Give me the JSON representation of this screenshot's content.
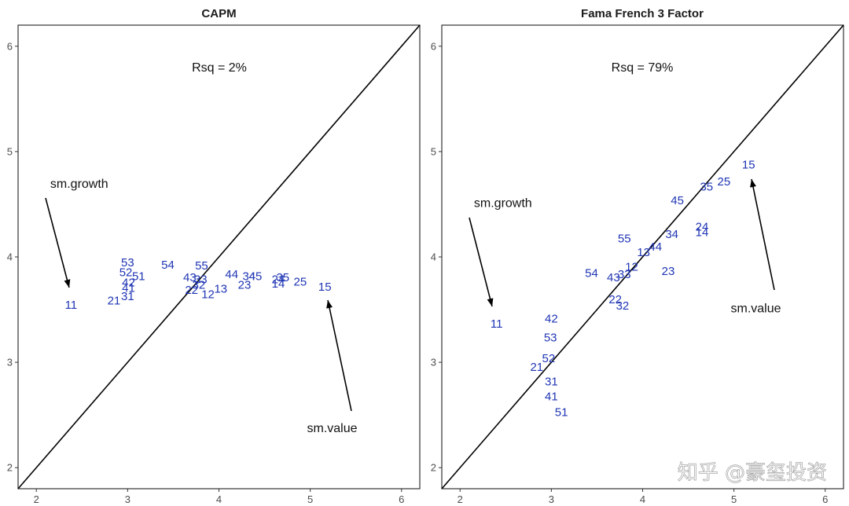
{
  "chart_data": [
    {
      "type": "scatter",
      "title": "CAPM",
      "xlim": [
        1.8,
        6.2
      ],
      "ylim": [
        1.8,
        6.2
      ],
      "xticks": [
        "2",
        "3",
        "4",
        "5",
        "6"
      ],
      "yticks": [
        "2",
        "3",
        "4",
        "5",
        "6"
      ],
      "reference_line": "45-degree",
      "rsq_label": "Rsq = 2%",
      "points": [
        {
          "label": "11",
          "x": 2.38,
          "y": 3.55
        },
        {
          "label": "21",
          "x": 2.85,
          "y": 3.59
        },
        {
          "label": "31",
          "x": 3.0,
          "y": 3.63
        },
        {
          "label": "41",
          "x": 3.01,
          "y": 3.71
        },
        {
          "label": "42",
          "x": 3.01,
          "y": 3.76
        },
        {
          "label": "51",
          "x": 3.12,
          "y": 3.82
        },
        {
          "label": "52",
          "x": 2.98,
          "y": 3.86
        },
        {
          "label": "53",
          "x": 3.0,
          "y": 3.95
        },
        {
          "label": "54",
          "x": 3.44,
          "y": 3.93
        },
        {
          "label": "43",
          "x": 3.68,
          "y": 3.81
        },
        {
          "label": "33",
          "x": 3.8,
          "y": 3.79
        },
        {
          "label": "55",
          "x": 3.81,
          "y": 3.92
        },
        {
          "label": "32",
          "x": 3.78,
          "y": 3.74
        },
        {
          "label": "22",
          "x": 3.7,
          "y": 3.69
        },
        {
          "label": "12",
          "x": 3.88,
          "y": 3.65
        },
        {
          "label": "13",
          "x": 4.02,
          "y": 3.7
        },
        {
          "label": "44",
          "x": 4.14,
          "y": 3.84
        },
        {
          "label": "34",
          "x": 4.33,
          "y": 3.82
        },
        {
          "label": "45",
          "x": 4.4,
          "y": 3.82
        },
        {
          "label": "23",
          "x": 4.28,
          "y": 3.74
        },
        {
          "label": "24",
          "x": 4.65,
          "y": 3.79
        },
        {
          "label": "35",
          "x": 4.7,
          "y": 3.81
        },
        {
          "label": "14",
          "x": 4.65,
          "y": 3.75
        },
        {
          "label": "25",
          "x": 4.89,
          "y": 3.77
        },
        {
          "label": "15",
          "x": 5.16,
          "y": 3.72
        }
      ],
      "annotations": [
        {
          "text": "sm.growth",
          "x": 2.47,
          "y": 4.7
        },
        {
          "text": "sm.value",
          "x": 5.24,
          "y": 2.38
        }
      ]
    },
    {
      "type": "scatter",
      "title": "Fama French 3 Factor",
      "xlim": [
        1.8,
        6.2
      ],
      "ylim": [
        1.8,
        6.2
      ],
      "xticks": [
        "2",
        "3",
        "4",
        "5",
        "6"
      ],
      "yticks": [
        "2",
        "3",
        "4",
        "5",
        "6"
      ],
      "reference_line": "45-degree",
      "rsq_label": "Rsq = 79%",
      "points": [
        {
          "label": "11",
          "x": 2.4,
          "y": 3.37
        },
        {
          "label": "42",
          "x": 3.0,
          "y": 3.42
        },
        {
          "label": "53",
          "x": 2.99,
          "y": 3.24
        },
        {
          "label": "52",
          "x": 2.97,
          "y": 3.04
        },
        {
          "label": "21",
          "x": 2.84,
          "y": 2.96
        },
        {
          "label": "31",
          "x": 3.0,
          "y": 2.82
        },
        {
          "label": "41",
          "x": 3.0,
          "y": 2.68
        },
        {
          "label": "51",
          "x": 3.11,
          "y": 2.53
        },
        {
          "label": "54",
          "x": 3.44,
          "y": 3.85
        },
        {
          "label": "43",
          "x": 3.68,
          "y": 3.81
        },
        {
          "label": "33",
          "x": 3.8,
          "y": 3.84
        },
        {
          "label": "22",
          "x": 3.7,
          "y": 3.6
        },
        {
          "label": "32",
          "x": 3.78,
          "y": 3.54
        },
        {
          "label": "55",
          "x": 3.8,
          "y": 4.18
        },
        {
          "label": "12",
          "x": 3.88,
          "y": 3.91
        },
        {
          "label": "13",
          "x": 4.01,
          "y": 4.05
        },
        {
          "label": "44",
          "x": 4.14,
          "y": 4.1
        },
        {
          "label": "34",
          "x": 4.32,
          "y": 4.22
        },
        {
          "label": "23",
          "x": 4.28,
          "y": 3.87
        },
        {
          "label": "45",
          "x": 4.38,
          "y": 4.54
        },
        {
          "label": "24",
          "x": 4.65,
          "y": 4.29
        },
        {
          "label": "14",
          "x": 4.65,
          "y": 4.24
        },
        {
          "label": "35",
          "x": 4.7,
          "y": 4.67
        },
        {
          "label": "25",
          "x": 4.89,
          "y": 4.72
        },
        {
          "label": "15",
          "x": 5.16,
          "y": 4.88
        }
      ],
      "annotations": [
        {
          "text": "sm.growth",
          "x": 2.47,
          "y": 4.52
        },
        {
          "text": "sm.value",
          "x": 5.24,
          "y": 3.52
        }
      ]
    }
  ],
  "watermark": {
    "text": "知乎 @豪玺投资"
  }
}
